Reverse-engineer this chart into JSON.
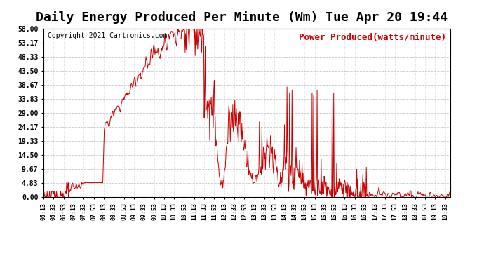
{
  "title": "Daily Energy Produced Per Minute (Wm) Tue Apr 20 19:44",
  "legend_label": "Power Produced(watts/minute)",
  "copyright_text": "Copyright 2021 Cartronics.com",
  "line_color": "#cc0000",
  "background_color": "#ffffff",
  "grid_color": "#c8c8c8",
  "ymin": 0.0,
  "ymax": 58.0,
  "yticks": [
    0.0,
    4.83,
    9.67,
    14.5,
    19.33,
    24.17,
    29.0,
    33.83,
    38.67,
    43.5,
    48.33,
    53.17,
    58.0
  ],
  "x_labels": [
    "06:13",
    "06:33",
    "06:53",
    "07:13",
    "07:33",
    "07:53",
    "08:13",
    "08:33",
    "08:53",
    "09:13",
    "09:33",
    "09:53",
    "10:13",
    "10:33",
    "10:53",
    "11:13",
    "11:33",
    "11:53",
    "12:13",
    "12:33",
    "12:53",
    "13:13",
    "13:33",
    "13:53",
    "14:13",
    "14:33",
    "14:53",
    "15:13",
    "15:33",
    "15:53",
    "16:13",
    "16:33",
    "16:53",
    "17:13",
    "17:33",
    "17:53",
    "18:13",
    "18:33",
    "18:53",
    "19:13",
    "19:33"
  ],
  "title_fontsize": 13,
  "axis_fontsize": 7,
  "legend_fontsize": 9,
  "copyright_fontsize": 7,
  "n_points": 811,
  "peak_index": 295,
  "peak_value": 58.0
}
